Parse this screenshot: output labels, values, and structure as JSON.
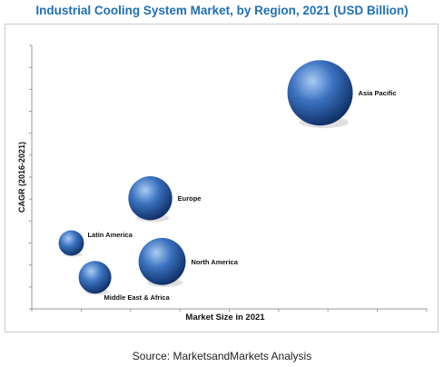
{
  "title": "Industrial Cooling System Market, by Region, 2021 (USD Billion)",
  "source": "Source: MarketsandMarkets Analysis",
  "colors": {
    "title": "#1f6fb5",
    "bubble_light": "#8fb8e8",
    "bubble_mid": "#3b72c0",
    "bubble_dark": "#0e2f66"
  },
  "chart_data": {
    "type": "scatter",
    "xlabel": "Market Size in 2021",
    "ylabel": "CAGR (2016-2021)",
    "xlim": [
      0,
      100
    ],
    "ylim": [
      0,
      100
    ],
    "grid": false,
    "legend": "none",
    "points": [
      {
        "label": "Asia Pacific",
        "x": 73,
        "y": 82,
        "size": 100
      },
      {
        "label": "Europe",
        "x": 30,
        "y": 42,
        "size": 45
      },
      {
        "label": "North America",
        "x": 33,
        "y": 18,
        "size": 52
      },
      {
        "label": "Latin America",
        "x": 10,
        "y": 25,
        "size": 15
      },
      {
        "label": "Middle East & Africa",
        "x": 16,
        "y": 12,
        "size": 25
      }
    ]
  }
}
